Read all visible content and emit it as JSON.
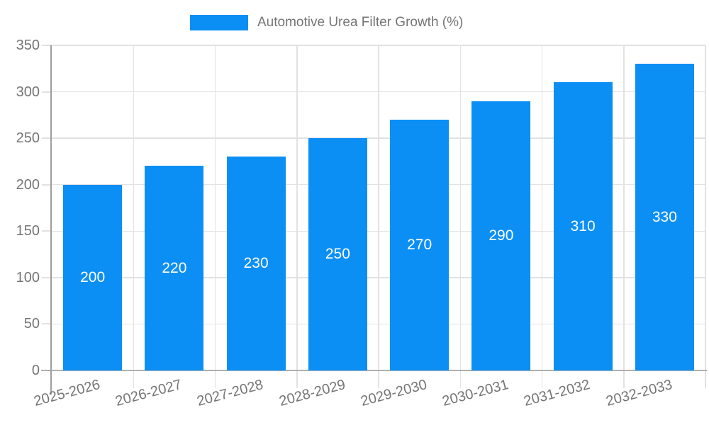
{
  "chart_data": {
    "type": "bar",
    "title": "Automotive Urea Filter Growth (%)",
    "legend": {
      "position": "top",
      "entries": [
        "Automotive Urea Filter Growth (%)"
      ]
    },
    "categories": [
      "2025-2026",
      "2026-2027",
      "2027-2028",
      "2028-2029",
      "2029-2030",
      "2030-2031",
      "2031-2032",
      "2032-2033"
    ],
    "values": [
      200,
      220,
      230,
      250,
      270,
      290,
      310,
      330
    ],
    "data_labels_visible": true,
    "xlabel": "",
    "ylabel": "",
    "ylim": [
      0,
      350
    ],
    "y_ticks": [
      0,
      50,
      100,
      150,
      200,
      250,
      300,
      350
    ],
    "grid": "horizontal and vertical light gridlines",
    "x_tick_label_rotation_deg": -15,
    "colors": {
      "bar": "#0b8ff5",
      "data_label_text": "#ffffff",
      "axis_text": "#757575",
      "grid_line": "#e2e2e2",
      "y_axis_line": "#9e9e9e",
      "baseline": "#b0b0b0",
      "background": "#ffffff"
    }
  }
}
